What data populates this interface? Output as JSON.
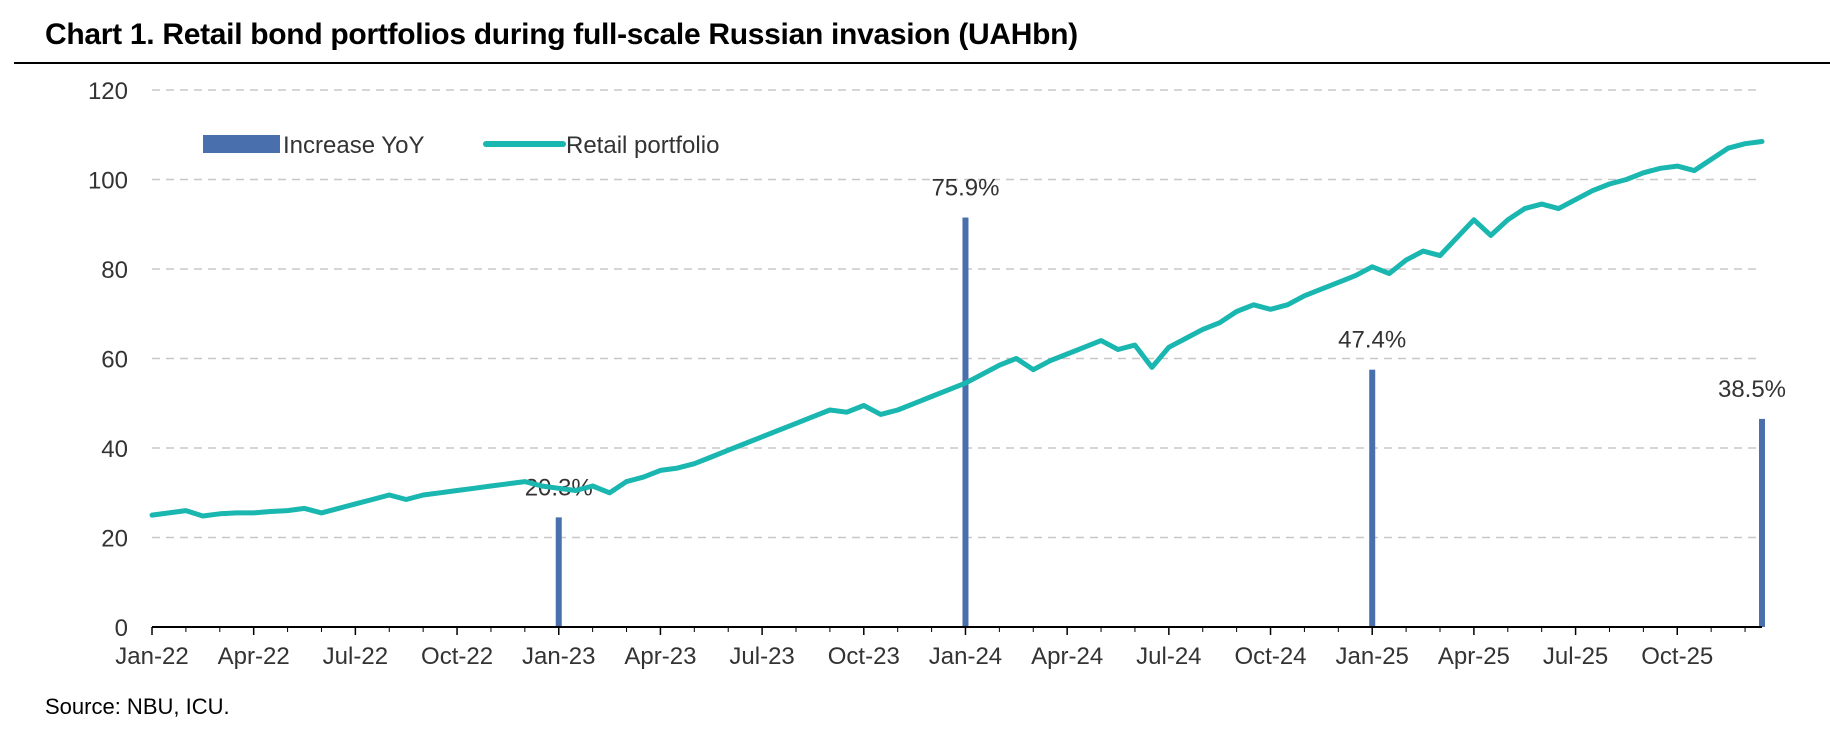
{
  "title": "Chart 1. Retail bond portfolios during full-scale Russian invasion (UAHbn)",
  "source": "Source: NBU, ICU.",
  "colors": {
    "bars": "#4a6fad",
    "line": "#1ab6b0",
    "grid": "#c8c8c8",
    "axis": "#000000",
    "text": "#333333"
  },
  "chart_data": {
    "type": "bar+line",
    "title": "Chart 1. Retail bond portfolios during full-scale Russian invasion (UAHbn)",
    "xlabel": "",
    "ylabel": "",
    "ylim": [
      0,
      120
    ],
    "yticks": [
      0,
      20,
      40,
      60,
      80,
      100,
      120
    ],
    "grid": true,
    "legend_position": "top-left",
    "x_tick_labels": [
      "Jan-22",
      "Apr-22",
      "Jul-22",
      "Oct-22",
      "Jan-23",
      "Apr-23",
      "Jul-23",
      "Oct-23",
      "Jan-24",
      "Apr-24",
      "Jul-24",
      "Oct-24",
      "Jan-25",
      "Apr-25",
      "Jul-25",
      "Oct-25"
    ],
    "x_range_months": [
      0,
      47.5
    ],
    "legend": [
      "Increase YoY",
      "Retail portfolio"
    ],
    "bars": {
      "name": "Increase YoY",
      "x_months": [
        12,
        24,
        36,
        47.5
      ],
      "values": [
        24.5,
        91.5,
        57.5,
        46.5
      ],
      "labels": [
        "20.3%",
        "75.9%",
        "47.4%",
        "38.5%"
      ]
    },
    "series": [
      {
        "name": "Retail portfolio",
        "x_months": [
          0,
          0.5,
          1,
          1.5,
          2,
          2.5,
          3,
          3.5,
          4,
          4.5,
          5,
          5.5,
          6,
          6.5,
          7,
          7.5,
          8,
          8.5,
          9,
          9.5,
          10,
          10.5,
          11,
          11.5,
          12,
          12.5,
          13,
          13.5,
          14,
          14.5,
          15,
          15.5,
          16,
          16.5,
          17,
          17.5,
          18,
          18.5,
          19,
          19.5,
          20,
          20.5,
          21,
          21.5,
          22,
          22.5,
          23,
          23.5,
          24,
          24.5,
          25,
          25.5,
          26,
          26.5,
          27,
          27.5,
          28,
          28.5,
          29,
          29.5,
          30,
          30.5,
          31,
          31.5,
          32,
          32.5,
          33,
          33.5,
          34,
          34.5,
          35,
          35.5,
          36,
          36.5,
          37,
          37.5,
          38,
          38.5,
          39,
          39.5,
          40,
          40.5,
          41,
          41.5,
          42,
          42.5,
          43,
          43.5,
          44,
          44.5,
          45,
          45.5,
          46,
          46.5,
          47,
          47.5
        ],
        "values": [
          25,
          25.5,
          26,
          24.8,
          25.3,
          25.5,
          25.5,
          25.8,
          26,
          26.5,
          25.5,
          26.5,
          27.5,
          28.5,
          29.5,
          28.5,
          29.5,
          30,
          30.5,
          31,
          31.5,
          32,
          32.5,
          31.5,
          31,
          30.5,
          31.5,
          30,
          32.5,
          33.5,
          35,
          35.5,
          36.5,
          38,
          39.5,
          41,
          42.5,
          44,
          45.5,
          47,
          48.5,
          48,
          49.5,
          47.5,
          48.5,
          50,
          51.5,
          53,
          54.5,
          56.5,
          58.5,
          60,
          57.5,
          59.5,
          61,
          62.5,
          64,
          62,
          63,
          58,
          62.5,
          64.5,
          66.5,
          68,
          70.5,
          72,
          71,
          72,
          74,
          75.5,
          77,
          78.5,
          80.5,
          79,
          82,
          84,
          83,
          87,
          91,
          87.5,
          91,
          93.5,
          94.5,
          93.5,
          95.5,
          97.5,
          99,
          100,
          101.5,
          102.5,
          103,
          102,
          104.5,
          107,
          108,
          108.5
        ]
      }
    ]
  }
}
